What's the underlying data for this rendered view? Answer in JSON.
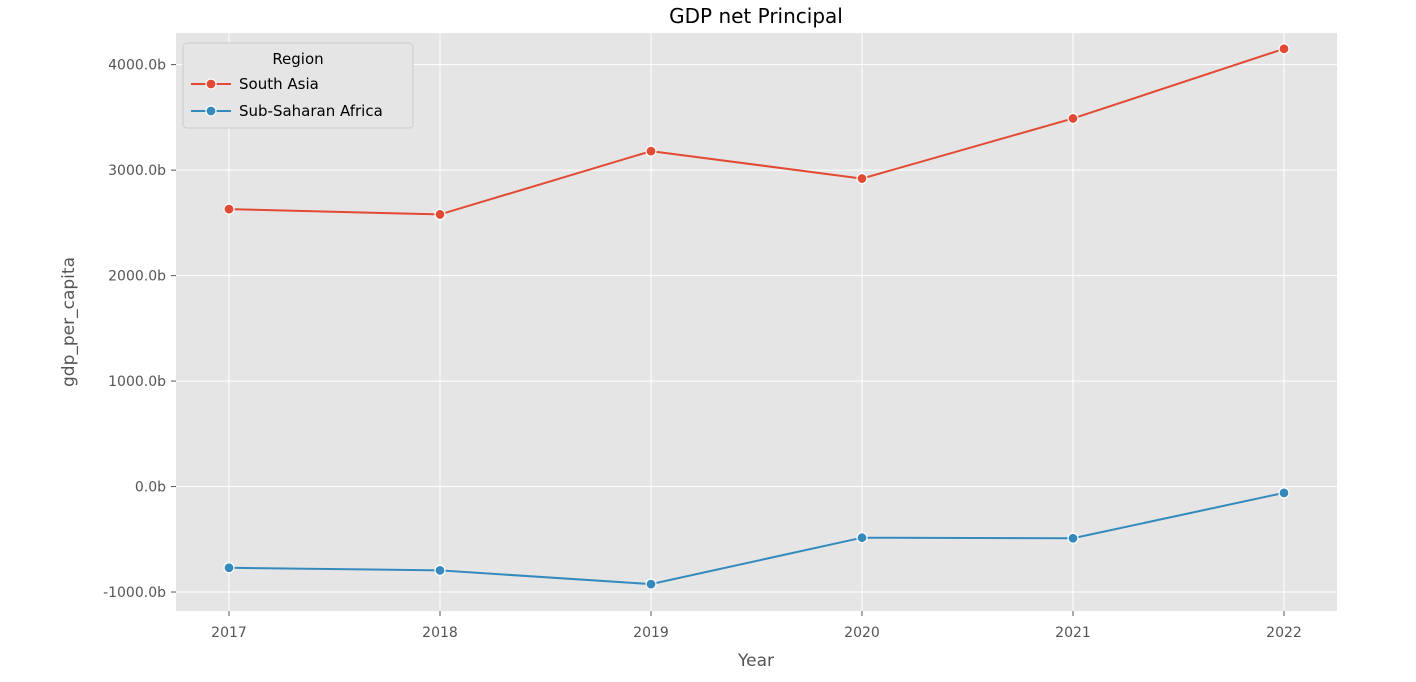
{
  "chart_data": {
    "type": "line",
    "title": "GDP net Principal",
    "xlabel": "Year",
    "ylabel": "gdp_per_capita",
    "x": [
      "2017",
      "2018",
      "2019",
      "2020",
      "2021",
      "2022"
    ],
    "y_ticks": [
      -1000,
      0,
      1000,
      2000,
      3000,
      4000
    ],
    "y_tick_labels": [
      "-1000.0b",
      "0.0b",
      "1000.0b",
      "2000.0b",
      "3000.0b",
      "4000.0b"
    ],
    "ylim": [
      -1180,
      4300
    ],
    "grid": true,
    "legend": {
      "title": "Region",
      "placement": "top-left"
    },
    "series": [
      {
        "name": "South Asia",
        "color": "#E24A33",
        "values": [
          2630,
          2580,
          3180,
          2920,
          3490,
          4150
        ]
      },
      {
        "name": "Sub-Saharan Africa",
        "color": "#348ABD",
        "values": [
          -770,
          -795,
          -925,
          -485,
          -490,
          -60
        ]
      }
    ]
  }
}
